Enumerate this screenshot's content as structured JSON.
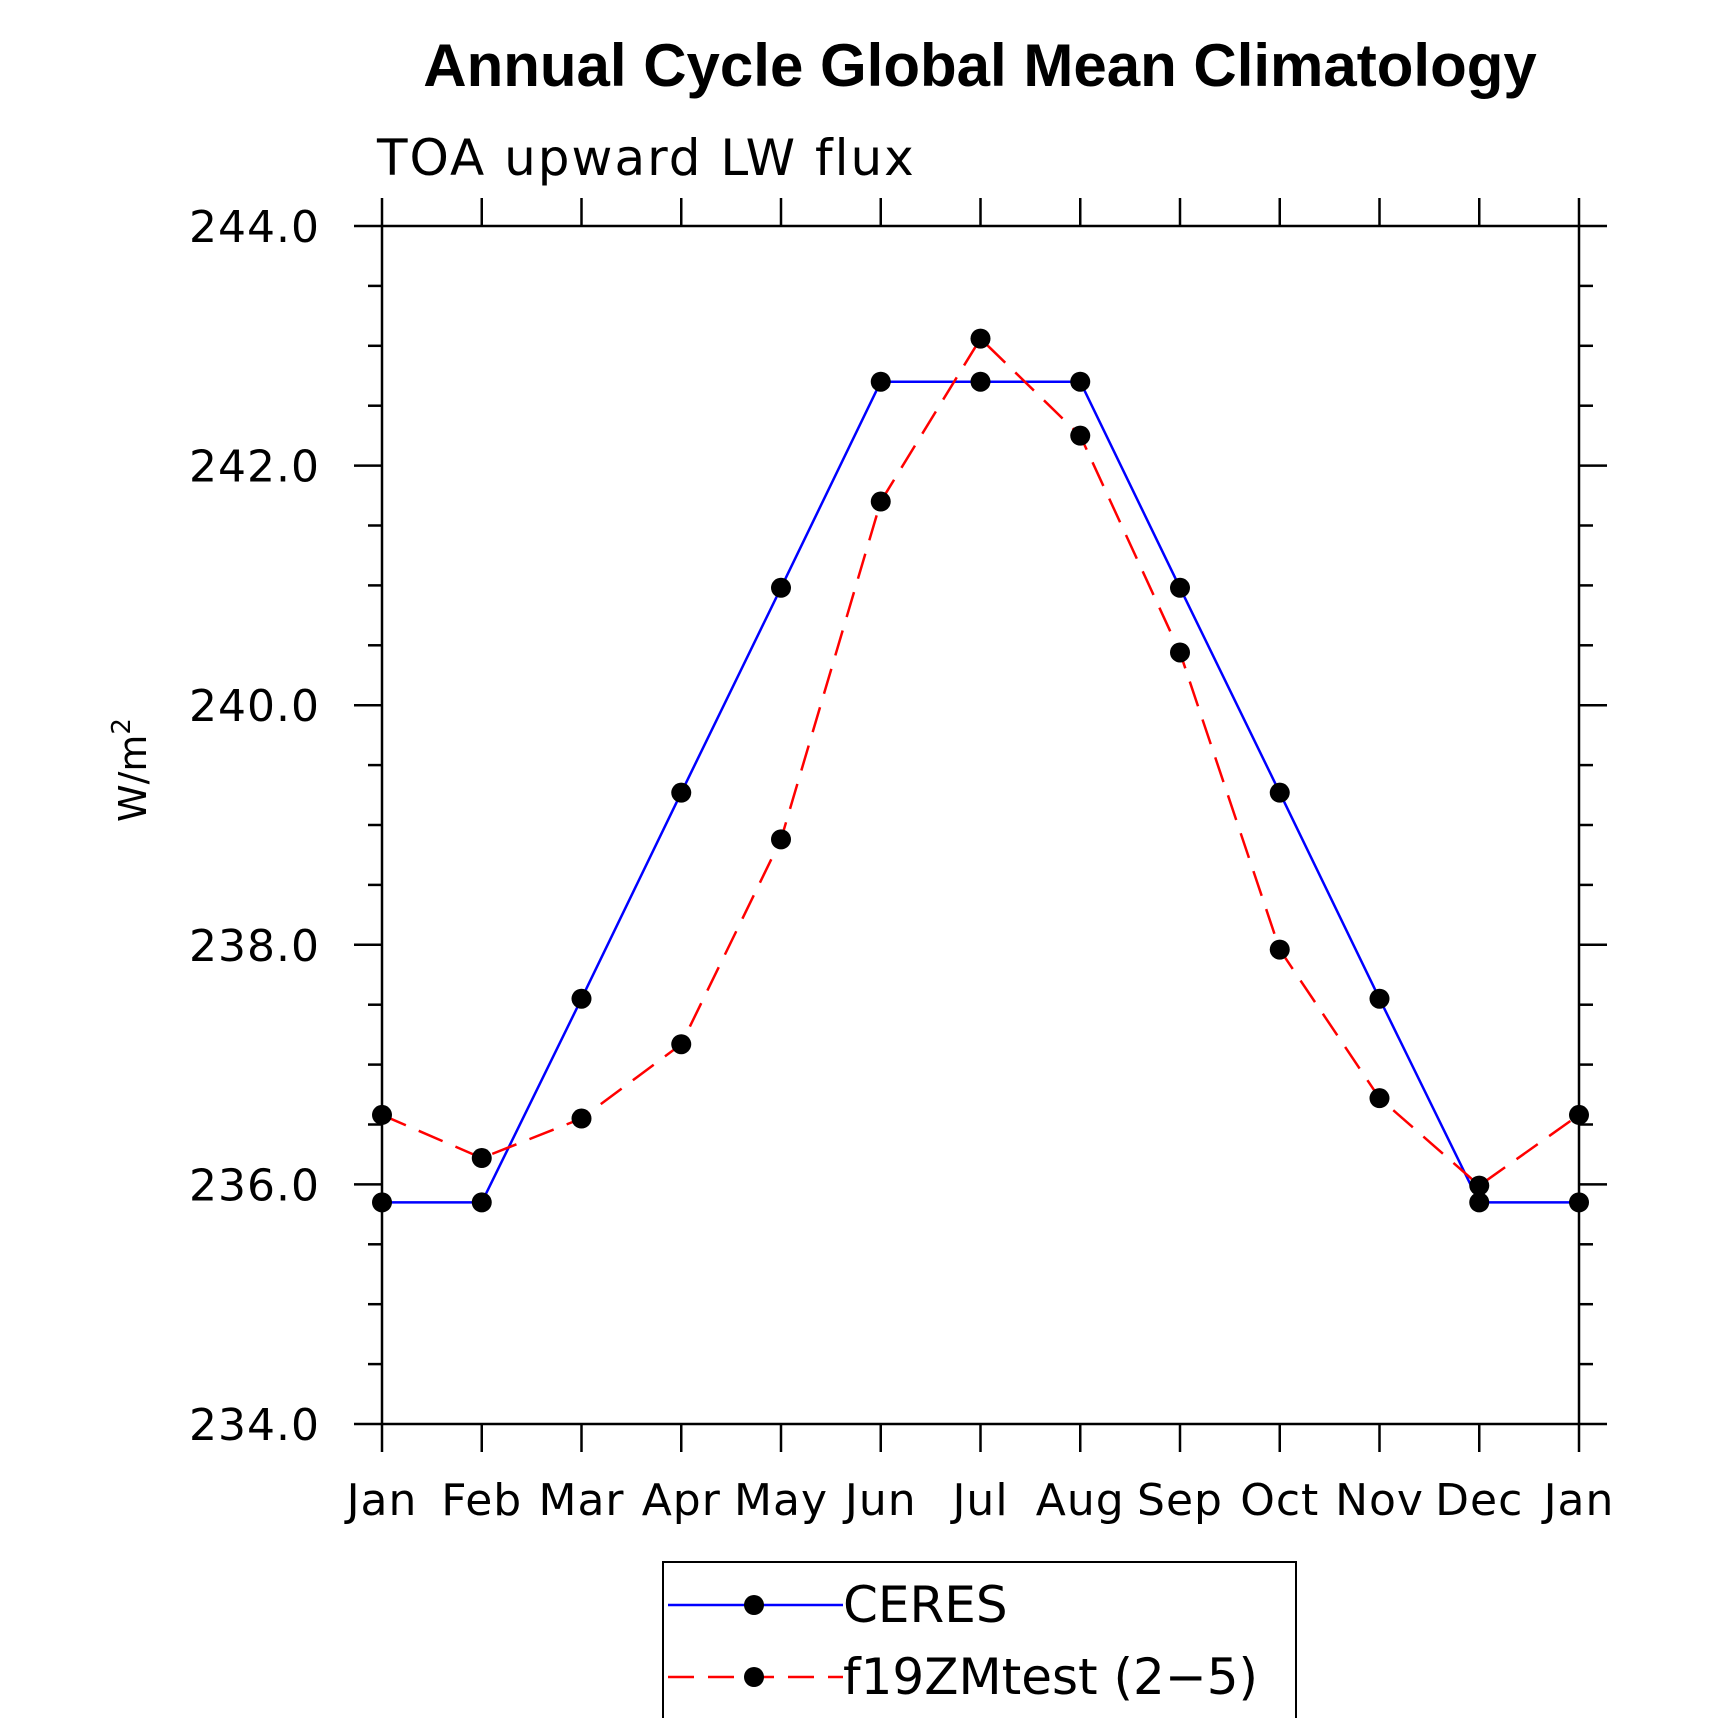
{
  "chart_data": {
    "type": "line",
    "title": "Annual Cycle Global Mean Climatology",
    "subtitle": "TOA upward LW flux",
    "ylabel_base": "W/m",
    "ylabel_superscript": "2",
    "xlabel": "",
    "categories": [
      "Jan",
      "Feb",
      "Mar",
      "Apr",
      "May",
      "Jun",
      "Jul",
      "Aug",
      "Sep",
      "Oct",
      "Nov",
      "Dec",
      "Jan"
    ],
    "ylim": [
      234.0,
      244.0
    ],
    "yticks": [
      "234.0",
      "236.0",
      "238.0",
      "240.0",
      "242.0",
      "244.0"
    ],
    "series": [
      {
        "name": "CERES",
        "color": "#0000ff",
        "dash": "solid",
        "marker": "filled-circle",
        "values": [
          235.85,
          235.85,
          237.55,
          239.27,
          240.98,
          242.7,
          242.7,
          242.7,
          240.98,
          239.27,
          237.55,
          235.85,
          235.85
        ]
      },
      {
        "name": "f19ZMtest (2-5)",
        "color": "#ff0000",
        "dash": "dashed",
        "marker": "filled-circle",
        "values": [
          236.58,
          236.22,
          236.55,
          237.17,
          238.88,
          241.7,
          243.06,
          242.25,
          240.44,
          237.96,
          236.72,
          235.99,
          236.58
        ]
      }
    ],
    "legend": {
      "position": "bottom-center",
      "entries": [
        "CERES",
        "f19ZMtest (2−5)"
      ]
    },
    "grid": false
  }
}
